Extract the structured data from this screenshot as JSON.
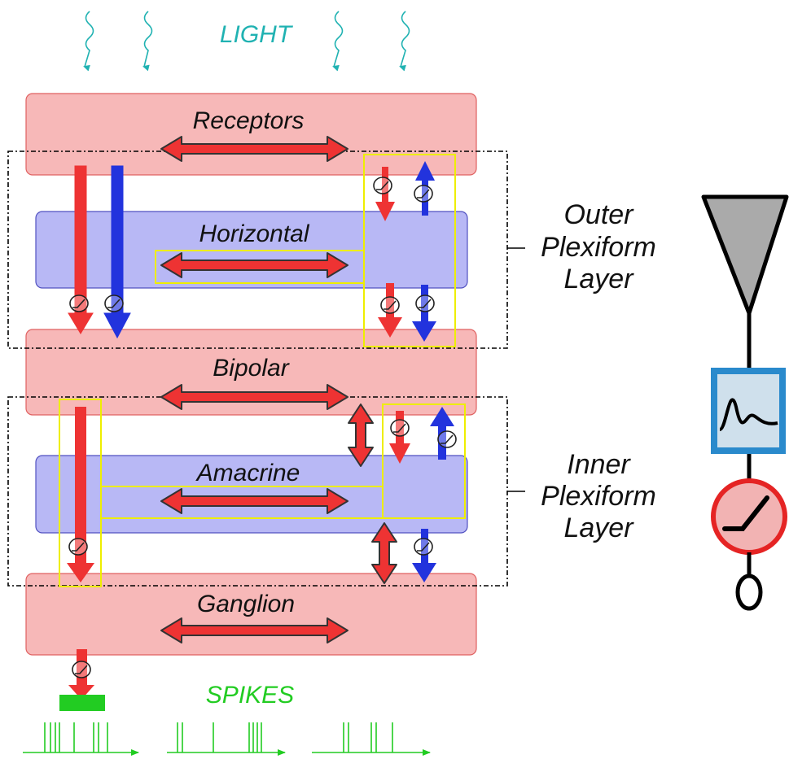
{
  "inputs": {
    "light_label": "LIGHT"
  },
  "layers": {
    "receptors": "Receptors",
    "horizontal": "Horizontal",
    "bipolar": "Bipolar",
    "amacrine": "Amacrine",
    "ganglion": "Ganglion"
  },
  "plexiform": {
    "outer": [
      "Outer",
      "Plexiform",
      "Layer"
    ],
    "inner": [
      "Inner",
      "Plexiform",
      "Layer"
    ]
  },
  "output": {
    "spikes_label": "SPIKES"
  },
  "colors": {
    "excitatory": "#ee3333",
    "inhibitory": "#2233dd",
    "cell_layer": "#f7b8b8",
    "interneuron_layer": "#b8b8f5",
    "light": "#20b2b2",
    "spikes": "#22cc22",
    "synapse_box": "#eeee00"
  }
}
